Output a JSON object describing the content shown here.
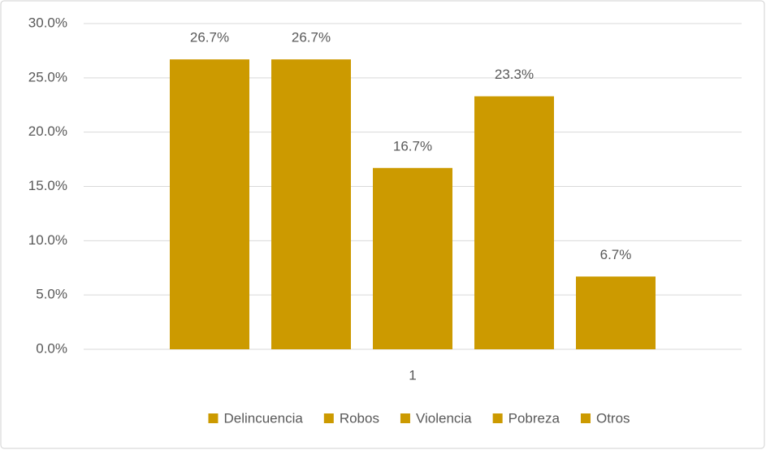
{
  "chart_data": {
    "type": "bar",
    "categories": [
      "1"
    ],
    "series": [
      {
        "name": "Delincuencia",
        "color": "#cc9a00",
        "values": [
          26.7
        ],
        "value_labels": [
          "26.7%"
        ]
      },
      {
        "name": "Robos",
        "color": "#cc9a00",
        "values": [
          26.7
        ],
        "value_labels": [
          "26.7%"
        ]
      },
      {
        "name": "Violencia",
        "color": "#cc9a00",
        "values": [
          16.7
        ],
        "value_labels": [
          "16.7%"
        ]
      },
      {
        "name": "Pobreza",
        "color": "#cc9a00",
        "values": [
          23.3
        ],
        "value_labels": [
          "23.3%"
        ]
      },
      {
        "name": "Otros",
        "color": "#cc9a00",
        "values": [
          6.7
        ],
        "value_labels": [
          "6.7%"
        ]
      }
    ],
    "ylim": [
      0,
      30
    ],
    "yticks": [
      {
        "value": 0,
        "label": "0.0%"
      },
      {
        "value": 5,
        "label": "5.0%"
      },
      {
        "value": 10,
        "label": "10.0%"
      },
      {
        "value": 15,
        "label": "15.0%"
      },
      {
        "value": 20,
        "label": "20.0%"
      },
      {
        "value": 25,
        "label": "25.0%"
      },
      {
        "value": 30,
        "label": "30.0%"
      }
    ],
    "grid": true,
    "legend": "bottom"
  }
}
